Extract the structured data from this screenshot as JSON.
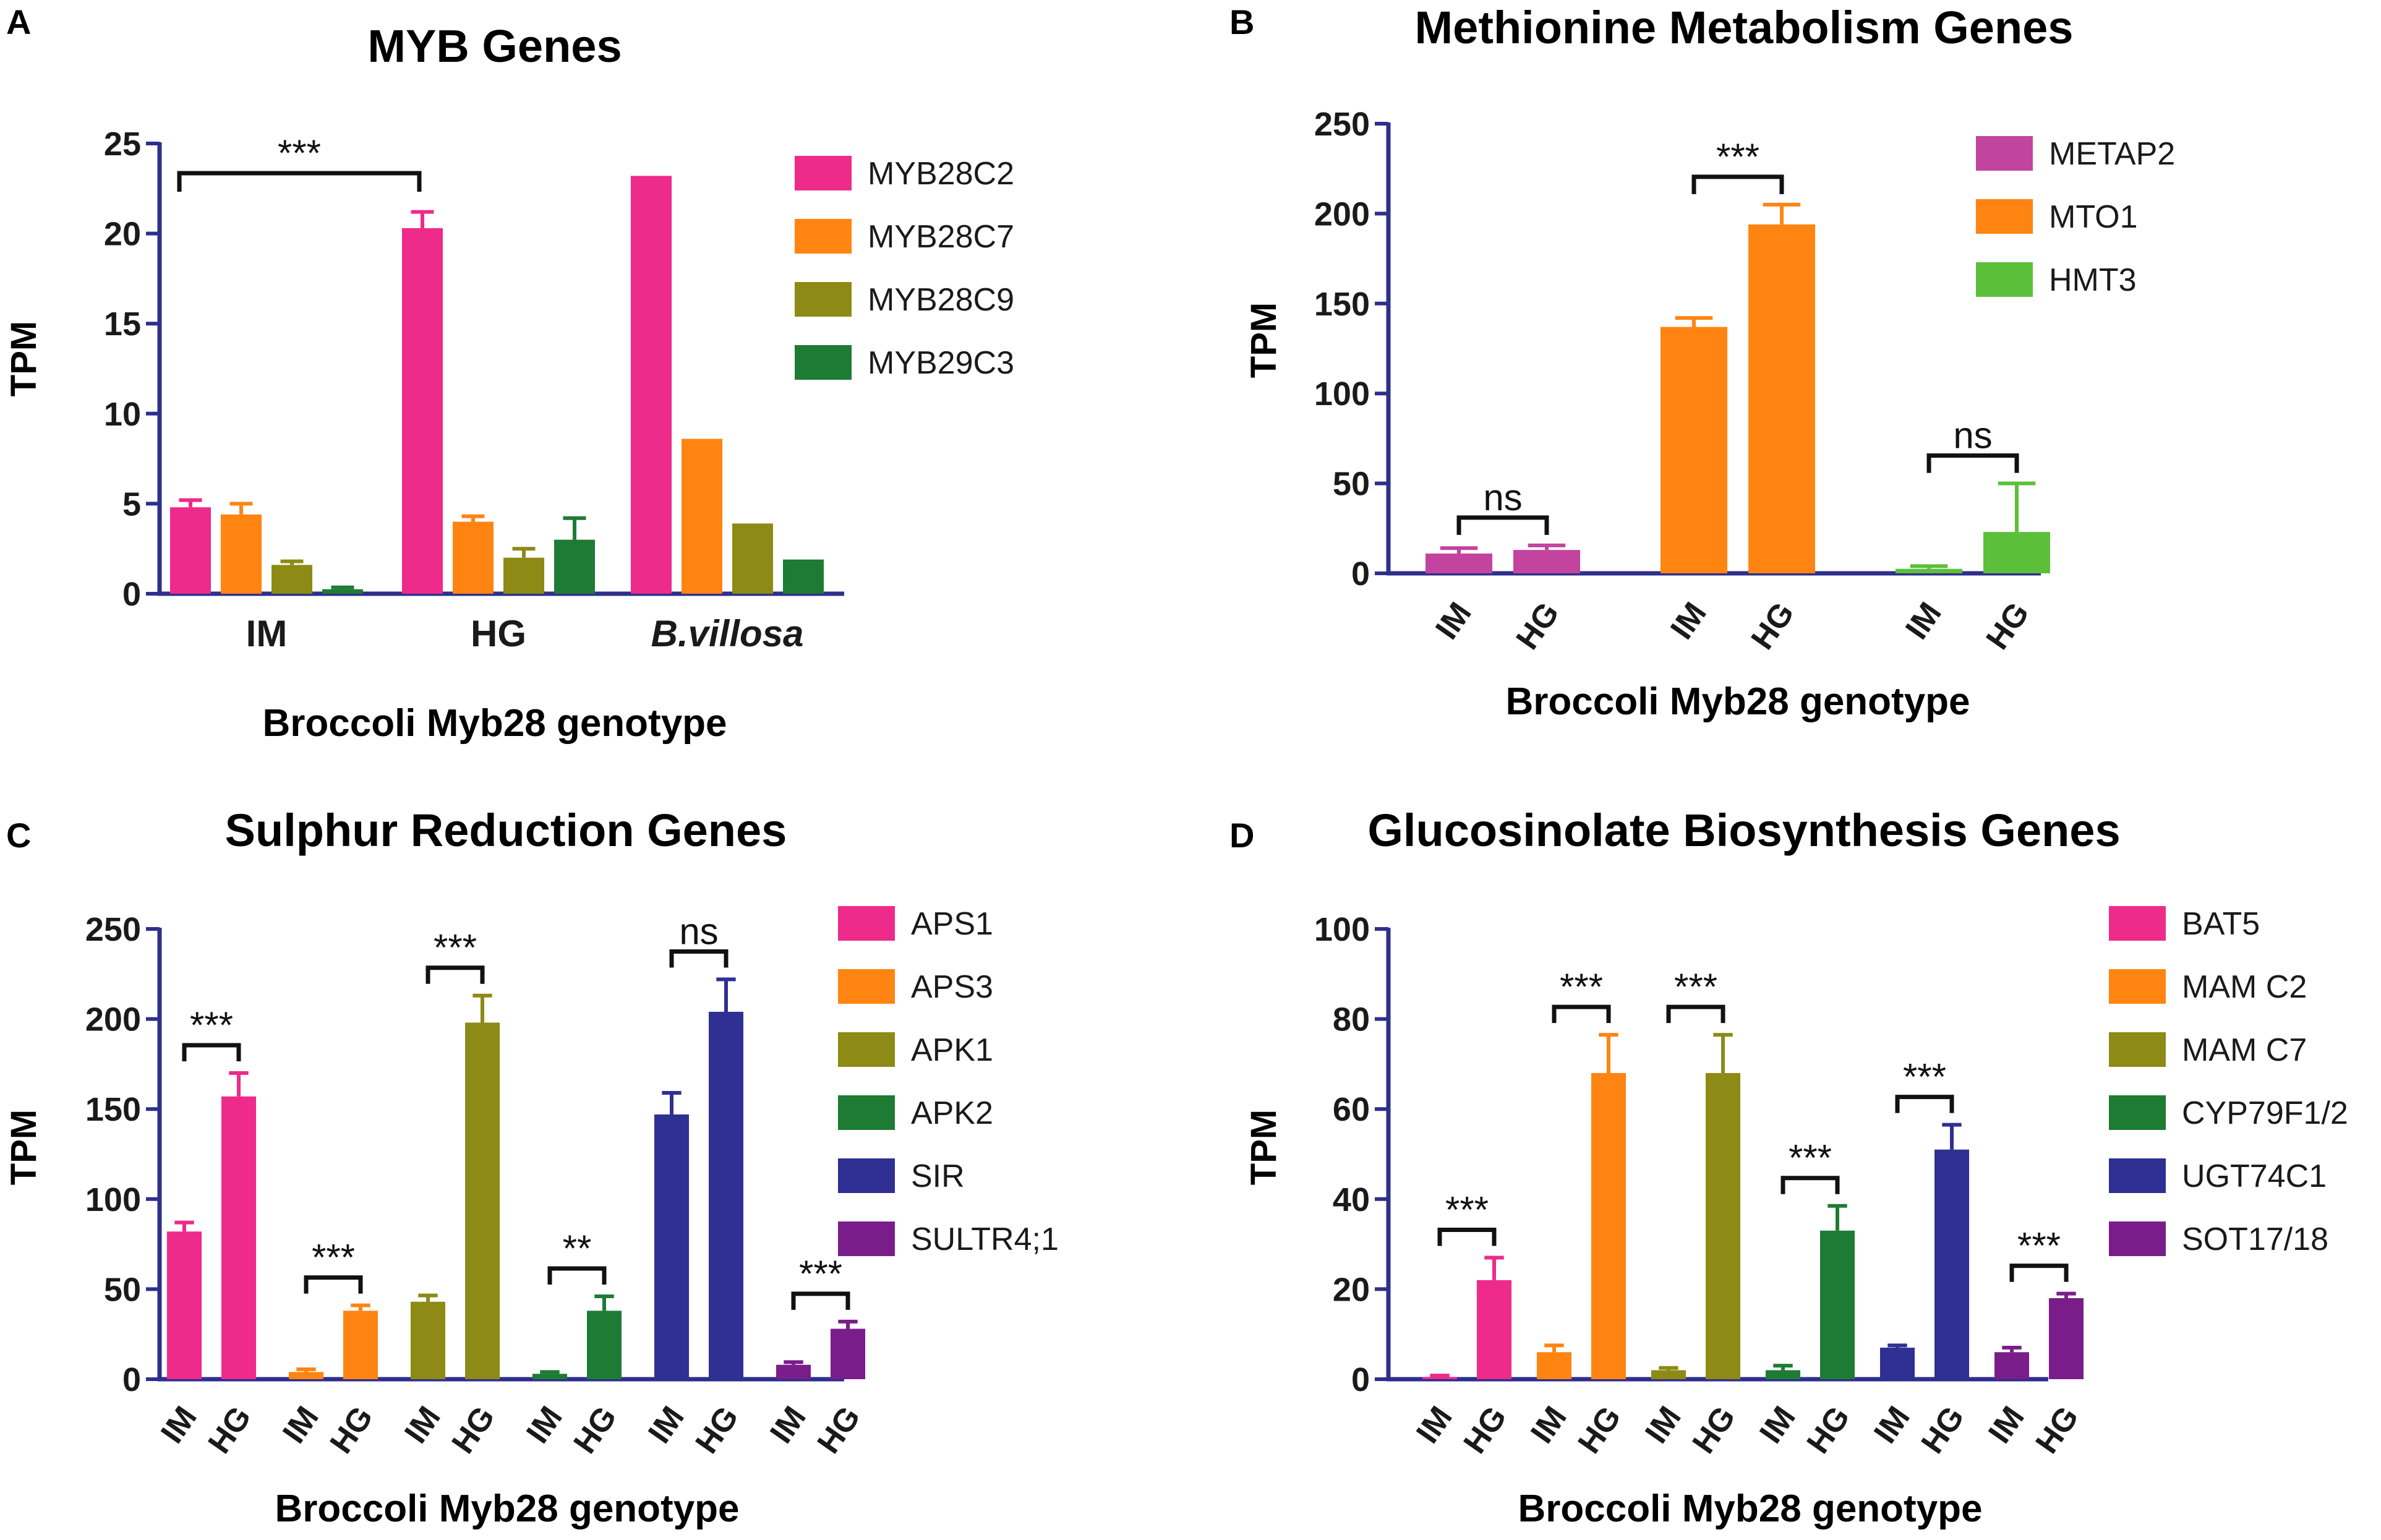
{
  "colors": {
    "axis": "#2e2f8c",
    "text": "#1a1a1a",
    "pink": "#ee2a8a",
    "orange": "#ff8412",
    "olive": "#8d8a16",
    "green": "#1e7b34",
    "navy": "#2f2f94",
    "purple": "#7a1d8a",
    "metap2": "#c2449e",
    "hmt3": "#5cbf3a"
  },
  "chart_data": [
    {
      "panel": "A",
      "type": "bar",
      "title": "MYB Genes",
      "xlabel": "Broccoli Myb28 genotype",
      "ylabel": "TPM",
      "ylim": [
        0,
        25
      ],
      "yticks": [
        "0",
        "5",
        "10",
        "15",
        "20",
        "25"
      ],
      "categories": [
        "IM",
        "HG",
        "B.villosa"
      ],
      "italic_category": "B.villosa",
      "series": [
        {
          "name": "MYB28C2",
          "color": "#ee2a8a",
          "values": [
            4.8,
            20.3,
            23.2
          ],
          "errors": [
            0.4,
            0.9,
            0
          ]
        },
        {
          "name": "MYB28C7",
          "color": "#ff8412",
          "values": [
            4.4,
            4.0,
            8.6
          ],
          "errors": [
            0.6,
            0.3,
            0
          ]
        },
        {
          "name": "MYB28C9",
          "color": "#8d8a16",
          "values": [
            1.6,
            2.0,
            3.9
          ],
          "errors": [
            0.2,
            0.5,
            0
          ]
        },
        {
          "name": "MYB29C3",
          "color": "#1e7b34",
          "values": [
            0.25,
            3.0,
            1.9
          ],
          "errors": [
            0.1,
            1.2,
            0
          ]
        }
      ],
      "annotations": [
        {
          "label": "***",
          "from": "IM",
          "to": "HG"
        }
      ]
    },
    {
      "panel": "B",
      "type": "bar",
      "title": "Methionine Metabolism Genes",
      "xlabel": "Broccoli Myb28 genotype",
      "ylabel": "TPM",
      "ylim": [
        0,
        250
      ],
      "yticks": [
        "0",
        "50",
        "100",
        "150",
        "200",
        "250"
      ],
      "genes": [
        {
          "name": "METAP2",
          "color": "#c2449e",
          "IM": 11,
          "IM_err": 3,
          "HG": 13,
          "HG_err": 2.5,
          "sig": "ns"
        },
        {
          "name": "MTO1",
          "color": "#ff8412",
          "IM": 137,
          "IM_err": 5,
          "HG": 194,
          "HG_err": 11,
          "sig": "***"
        },
        {
          "name": "HMT3",
          "color": "#5cbf3a",
          "IM": 2.5,
          "IM_err": 1.5,
          "HG": 23,
          "HG_err": 27,
          "sig": "ns"
        }
      ]
    },
    {
      "panel": "C",
      "type": "bar",
      "title": "Sulphur Reduction Genes",
      "xlabel": "Broccoli Myb28 genotype",
      "ylabel": "TPM",
      "ylim": [
        0,
        250
      ],
      "yticks": [
        "0",
        "50",
        "100",
        "150",
        "200",
        "250"
      ],
      "genes": [
        {
          "name": "APS1",
          "color": "#ee2a8a",
          "IM": 82,
          "IM_err": 5,
          "HG": 157,
          "HG_err": 13,
          "sig": "***"
        },
        {
          "name": "APS3",
          "color": "#ff8412",
          "IM": 4,
          "IM_err": 1.5,
          "HG": 38,
          "HG_err": 3,
          "sig": "***"
        },
        {
          "name": "APK1",
          "color": "#8d8a16",
          "IM": 43,
          "IM_err": 3.5,
          "HG": 198,
          "HG_err": 15,
          "sig": "***"
        },
        {
          "name": "APK2",
          "color": "#1e7b34",
          "IM": 3,
          "IM_err": 1,
          "HG": 38,
          "HG_err": 8,
          "sig": "**"
        },
        {
          "name": "SIR",
          "color": "#2f2f94",
          "IM": 147,
          "IM_err": 12,
          "HG": 204,
          "HG_err": 18,
          "sig": "ns"
        },
        {
          "name": "SULTR4;1",
          "color": "#7a1d8a",
          "IM": 8,
          "IM_err": 1.5,
          "HG": 28,
          "HG_err": 4,
          "sig": "***"
        }
      ]
    },
    {
      "panel": "D",
      "type": "bar",
      "title": "Glucosinolate Biosynthesis Genes",
      "xlabel": "Broccoli Myb28 genotype",
      "ylabel": "TPM",
      "ylim": [
        0,
        100
      ],
      "yticks": [
        "0",
        "20",
        "40",
        "60",
        "80",
        "100"
      ],
      "genes": [
        {
          "name": "BAT5",
          "color": "#ee2a8a",
          "IM": 0.5,
          "IM_err": 0.3,
          "HG": 22,
          "HG_err": 5,
          "sig": "***"
        },
        {
          "name": "MAM C2",
          "color": "#ff8412",
          "IM": 6,
          "IM_err": 1.5,
          "HG": 68,
          "HG_err": 8.5,
          "sig": "***"
        },
        {
          "name": "MAM C7",
          "color": "#8d8a16",
          "IM": 2,
          "IM_err": 0.5,
          "HG": 68,
          "HG_err": 8.5,
          "sig": "***"
        },
        {
          "name": "CYP79F1/2",
          "color": "#1e7b34",
          "IM": 2,
          "IM_err": 1,
          "HG": 33,
          "HG_err": 5.5,
          "sig": "***"
        },
        {
          "name": "UGT74C1",
          "color": "#2f2f94",
          "IM": 7,
          "IM_err": 0.5,
          "HG": 51,
          "HG_err": 5.5,
          "sig": "***"
        },
        {
          "name": "SOT17/18",
          "color": "#7a1d8a",
          "IM": 6,
          "IM_err": 1,
          "HG": 18,
          "HG_err": 1,
          "sig": "***"
        }
      ]
    }
  ],
  "genotype_labels": {
    "im": "IM",
    "hg": "HG"
  }
}
